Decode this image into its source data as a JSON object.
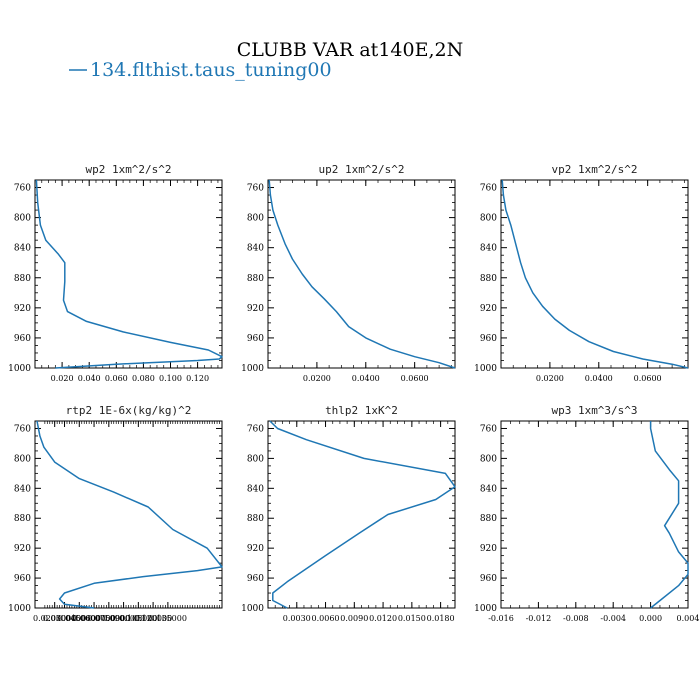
{
  "figure": {
    "title": "CLUBB VAR at140E,2N",
    "legend": {
      "label": "134.flthist.taus_tuning00",
      "color": "#1f77b4"
    },
    "line_color": "#1f77b4"
  },
  "chart_data": [
    {
      "type": "line",
      "title": "wp2  1xm^2/s^2",
      "xlim": [
        0.0,
        0.138
      ],
      "ylim": [
        1000,
        750
      ],
      "x_ticks": [
        "0.020",
        "0.040",
        "0.060",
        "0.080",
        "0.100",
        "0.120"
      ],
      "x_tick_values": [
        0.02,
        0.04,
        0.06,
        0.08,
        0.1,
        0.12
      ],
      "y_ticks": [
        "760",
        "800",
        "840",
        "880",
        "920",
        "960",
        "1000"
      ],
      "series": [
        {
          "x": [
            0.001,
            0.002,
            0.004,
            0.008,
            0.017,
            0.022,
            0.022,
            0.021,
            0.024,
            0.038,
            0.065,
            0.1,
            0.128,
            0.138,
            0.136,
            0.12,
            0.06,
            0.015
          ],
          "y": [
            750,
            780,
            810,
            830,
            848,
            860,
            885,
            910,
            925,
            938,
            952,
            966,
            976,
            985,
            988,
            990,
            995,
            1000
          ]
        }
      ]
    },
    {
      "type": "line",
      "title": "up2  1xm^2/s^2",
      "xlim": [
        0.0,
        0.0765
      ],
      "ylim": [
        1000,
        750
      ],
      "x_ticks": [
        "0.0200",
        "0.0400",
        "0.0600"
      ],
      "x_tick_values": [
        0.02,
        0.04,
        0.06
      ],
      "y_ticks": [
        "760",
        "800",
        "840",
        "880",
        "920",
        "960",
        "1000"
      ],
      "series": [
        {
          "x": [
            0.0005,
            0.001,
            0.002,
            0.004,
            0.007,
            0.01,
            0.014,
            0.018,
            0.023,
            0.028,
            0.033,
            0.04,
            0.05,
            0.06,
            0.07,
            0.0765
          ],
          "y": [
            750,
            770,
            790,
            810,
            835,
            855,
            875,
            892,
            908,
            925,
            945,
            960,
            975,
            985,
            993,
            1000
          ]
        }
      ]
    },
    {
      "type": "line",
      "title": "vp2  1xm^2/s^2",
      "xlim": [
        0.0,
        0.0765
      ],
      "ylim": [
        1000,
        750
      ],
      "x_ticks": [
        "0.0200",
        "0.0400",
        "0.0600"
      ],
      "x_tick_values": [
        0.02,
        0.04,
        0.06
      ],
      "y_ticks": [
        "760",
        "800",
        "840",
        "880",
        "920",
        "960",
        "1000"
      ],
      "series": [
        {
          "x": [
            0.0005,
            0.001,
            0.002,
            0.004,
            0.006,
            0.008,
            0.01,
            0.013,
            0.017,
            0.022,
            0.028,
            0.036,
            0.046,
            0.058,
            0.07,
            0.0765
          ],
          "y": [
            750,
            770,
            790,
            810,
            835,
            860,
            880,
            900,
            918,
            935,
            950,
            965,
            978,
            988,
            995,
            1000
          ]
        }
      ]
    },
    {
      "type": "line",
      "title": "rtp2  1E-6x(kg/kg)^2",
      "xlim": [
        0.0,
        0.19
      ],
      "ylim": [
        1000,
        750
      ],
      "x_ticks": [
        "0.0200000",
        "0.0300000",
        "0.0450000",
        "0.0600000",
        "0.0750000",
        "0.0900000",
        "0.105000",
        "0.120000",
        "0.135000"
      ],
      "x_tick_values": [
        0.02,
        0.03,
        0.045,
        0.06,
        0.075,
        0.09,
        0.105,
        0.12,
        0.135
      ],
      "y_ticks": [
        "760",
        "800",
        "840",
        "880",
        "920",
        "960",
        "1000"
      ],
      "series": [
        {
          "x": [
            0.002,
            0.005,
            0.009,
            0.02,
            0.045,
            0.08,
            0.115,
            0.14,
            0.175,
            0.19,
            0.165,
            0.11,
            0.06,
            0.03,
            0.025,
            0.03,
            0.06
          ],
          "y": [
            750,
            770,
            785,
            805,
            827,
            845,
            865,
            895,
            920,
            945,
            950,
            958,
            967,
            980,
            988,
            995,
            1000
          ]
        }
      ]
    },
    {
      "type": "line",
      "title": "thlp2  1xK^2",
      "xlim": [
        0.0,
        0.0195
      ],
      "ylim": [
        1000,
        750
      ],
      "x_ticks": [
        "0.0030",
        "0.0060",
        "0.0090",
        "0.0120",
        "0.0150",
        "0.0180"
      ],
      "x_tick_values": [
        0.003,
        0.006,
        0.009,
        0.012,
        0.015,
        0.018
      ],
      "y_ticks": [
        "760",
        "800",
        "840",
        "880",
        "920",
        "960",
        "1000"
      ],
      "series": [
        {
          "x": [
            0.0002,
            0.001,
            0.004,
            0.01,
            0.0185,
            0.0195,
            0.0175,
            0.0125,
            0.0095,
            0.006,
            0.002,
            0.0005,
            0.0005,
            0.002
          ],
          "y": [
            750,
            760,
            775,
            800,
            820,
            838,
            855,
            875,
            900,
            930,
            965,
            980,
            990,
            1000
          ]
        }
      ]
    },
    {
      "type": "line",
      "title": "wp3  1xm^3/s^3",
      "xlim": [
        -0.016,
        0.004
      ],
      "ylim": [
        1000,
        750
      ],
      "x_ticks": [
        "-0.016",
        "-0.012",
        "-0.008",
        "-0.004",
        "0.000",
        "0.004"
      ],
      "x_tick_values": [
        -0.016,
        -0.012,
        -0.008,
        -0.004,
        0.0,
        0.004
      ],
      "y_ticks": [
        "760",
        "800",
        "840",
        "880",
        "920",
        "960",
        "1000"
      ],
      "series": [
        {
          "x": [
            0.0,
            0.0,
            0.0005,
            0.002,
            0.003,
            0.003,
            0.002,
            0.0015,
            0.002,
            0.003,
            0.004,
            0.004,
            0.003,
            0.001,
            0.0
          ],
          "y": [
            750,
            760,
            790,
            815,
            830,
            860,
            880,
            890,
            900,
            925,
            940,
            955,
            970,
            990,
            1000
          ]
        }
      ]
    }
  ]
}
